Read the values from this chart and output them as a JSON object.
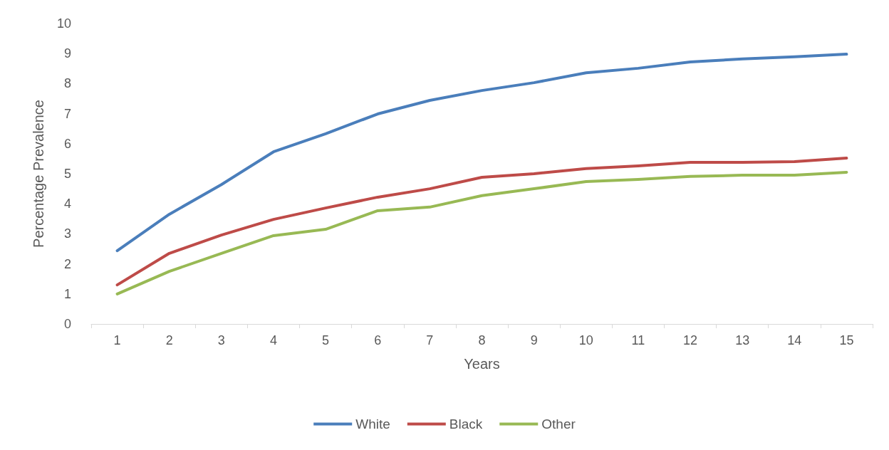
{
  "chart_data": {
    "type": "line",
    "xlabel": "Years",
    "ylabel": "Percentage Prevalence",
    "categories": [
      "1",
      "2",
      "3",
      "4",
      "5",
      "6",
      "7",
      "8",
      "9",
      "10",
      "11",
      "12",
      "13",
      "14",
      "15"
    ],
    "series": [
      {
        "name": "White",
        "color": "#4a7ebb",
        "values": [
          2.44,
          3.65,
          4.64,
          5.73,
          6.33,
          6.99,
          7.44,
          7.77,
          8.03,
          8.36,
          8.51,
          8.72,
          8.82,
          8.89,
          8.98
        ]
      },
      {
        "name": "Black",
        "color": "#be4b48",
        "values": [
          1.3,
          2.35,
          2.96,
          3.48,
          3.86,
          4.22,
          4.5,
          4.88,
          5.0,
          5.17,
          5.26,
          5.38,
          5.38,
          5.4,
          5.52
        ]
      },
      {
        "name": "Other",
        "color": "#98b954",
        "values": [
          1.0,
          1.75,
          2.35,
          2.94,
          3.15,
          3.77,
          3.89,
          4.27,
          4.5,
          4.74,
          4.81,
          4.91,
          4.95,
          4.95,
          5.05
        ]
      }
    ],
    "ylim": [
      0,
      10
    ],
    "yticks": [
      0,
      1,
      2,
      3,
      4,
      5,
      6,
      7,
      8,
      9,
      10
    ],
    "grid": false,
    "legend": "bottom",
    "marker": "none",
    "line_style": "solid"
  }
}
